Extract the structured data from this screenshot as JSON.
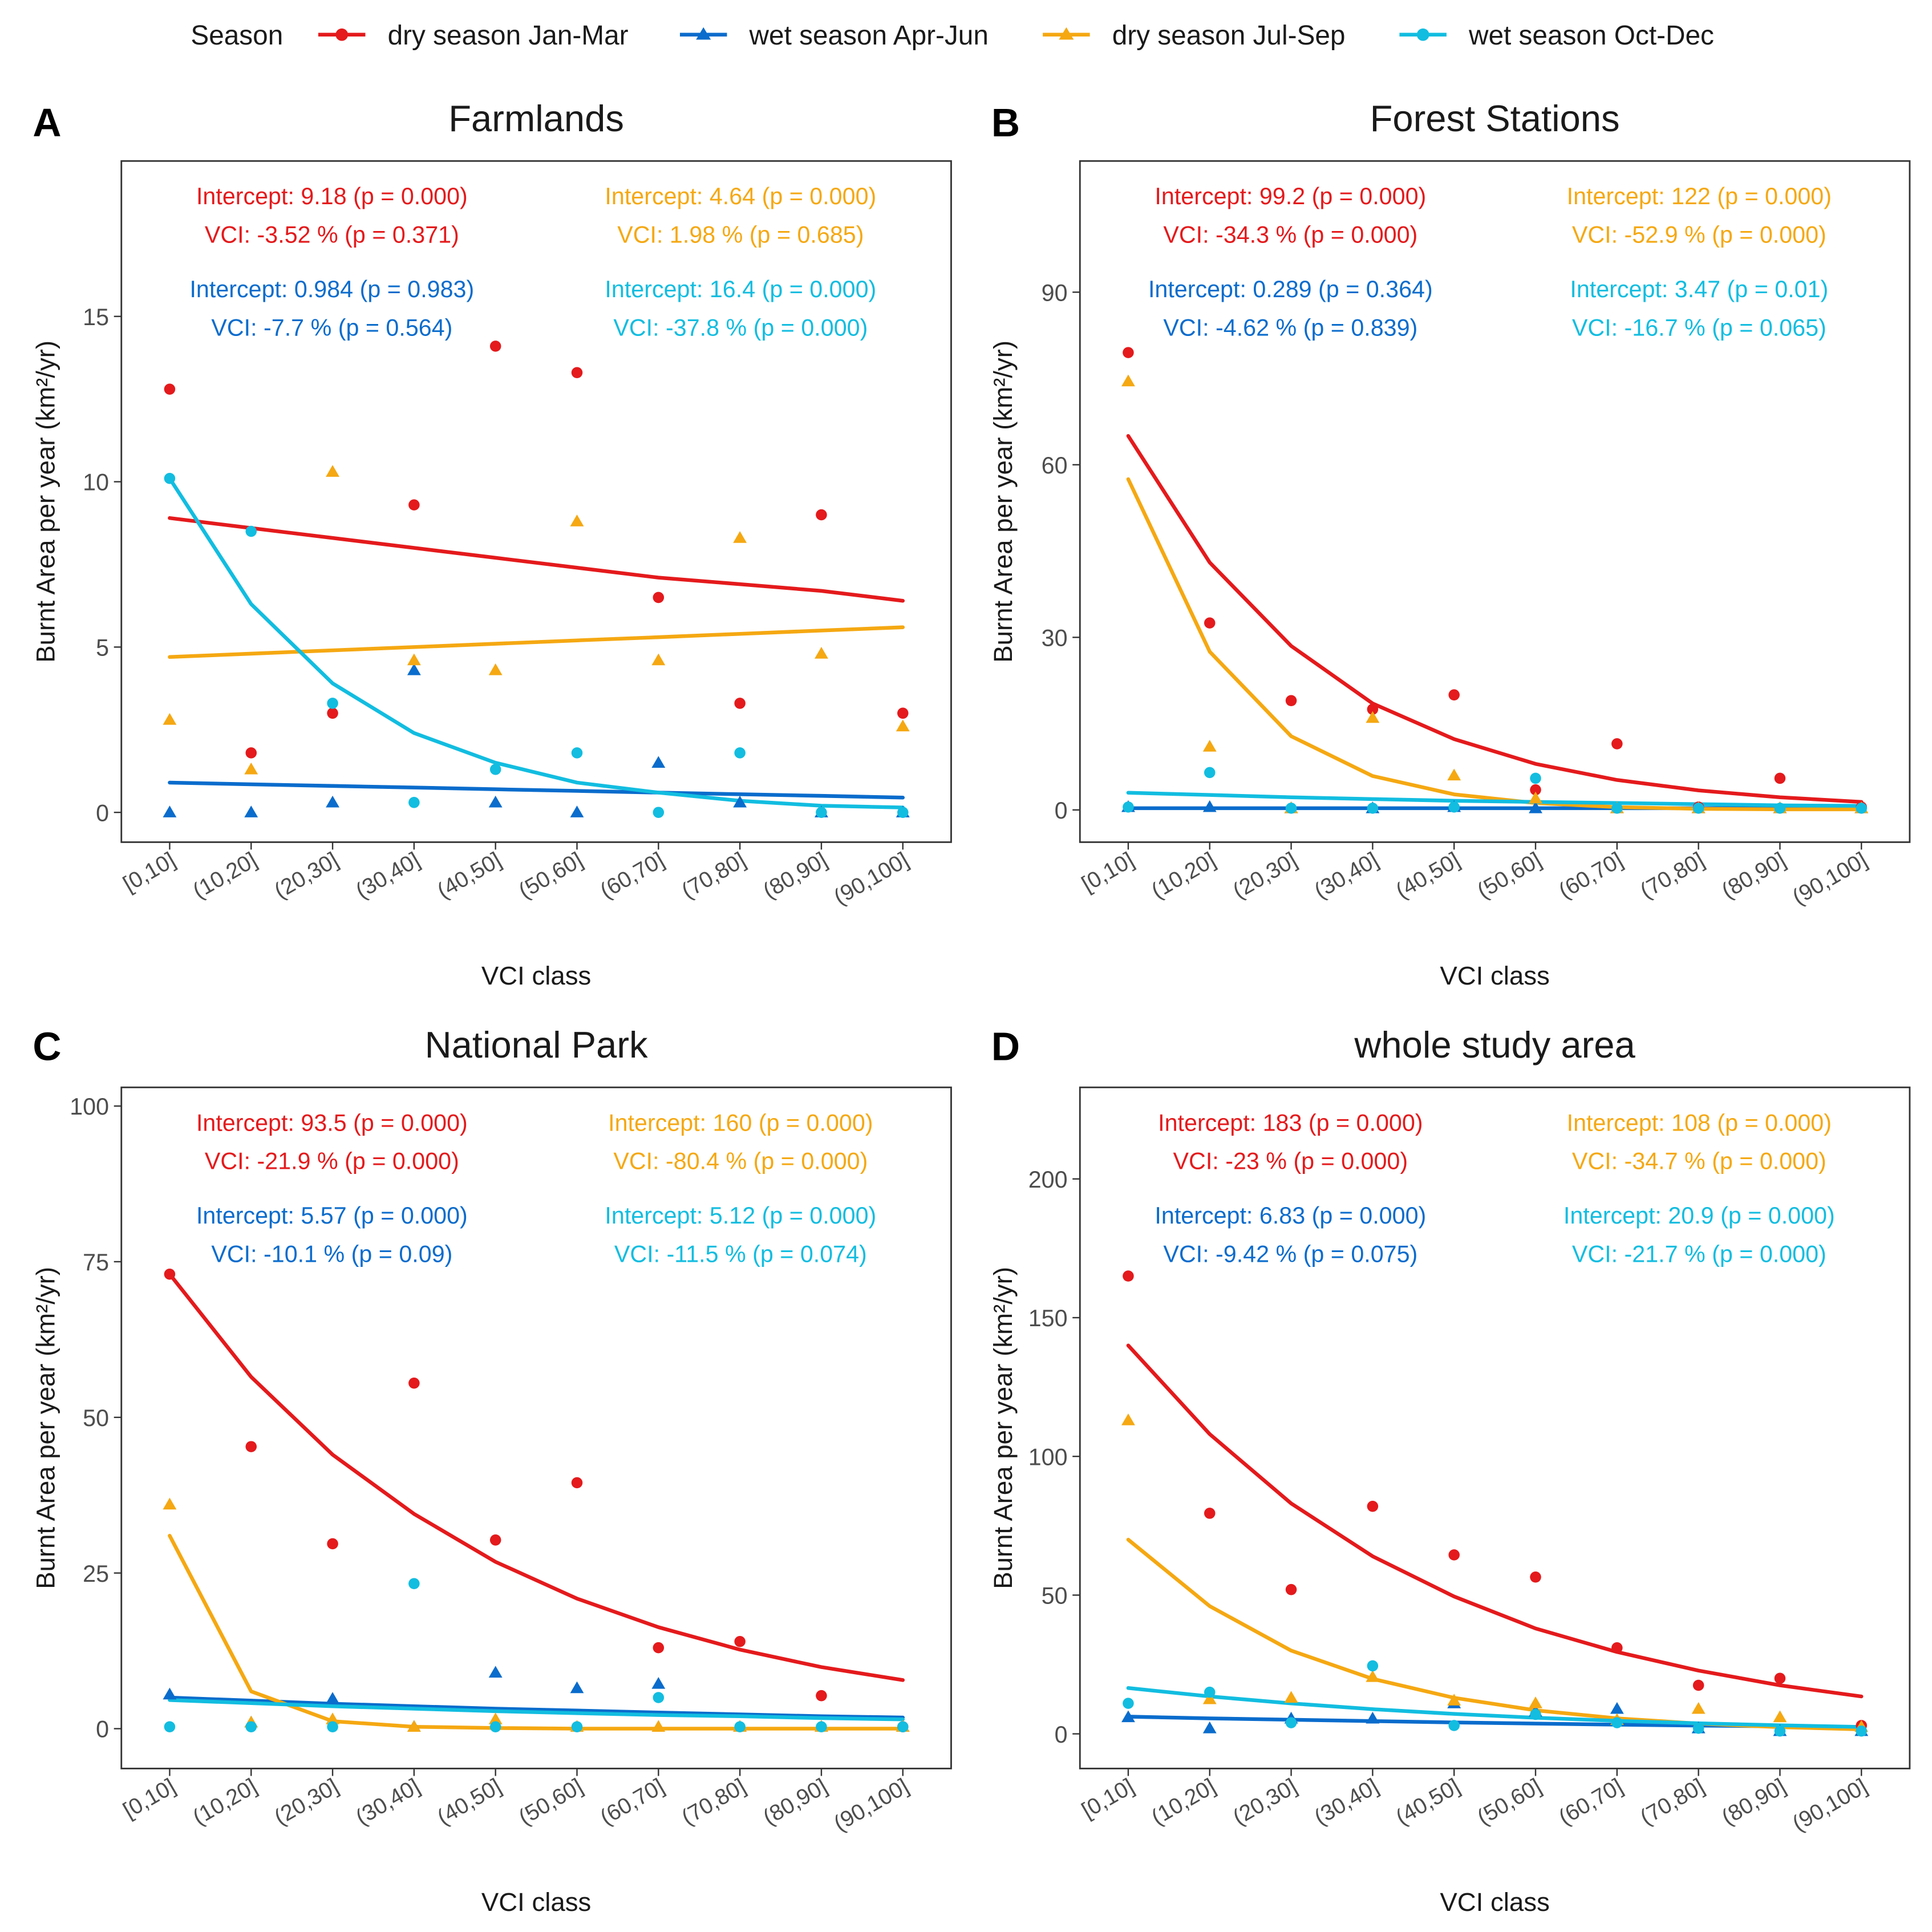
{
  "legend": {
    "title": "Season",
    "entries": [
      {
        "key": "dry1",
        "label": "dry season Jan-Mar",
        "color": "#e41a1c",
        "shape": "circle"
      },
      {
        "key": "wet1",
        "label": "wet season Apr-Jun",
        "color": "#0a6ccc",
        "shape": "triangle"
      },
      {
        "key": "dry2",
        "label": "dry season Jul-Sep",
        "color": "#f5a812",
        "shape": "triangle"
      },
      {
        "key": "wet2",
        "label": "wet season Oct-Dec",
        "color": "#12bde0",
        "shape": "circle"
      }
    ]
  },
  "chart_data": [
    {
      "type": "scatter",
      "tag": "A",
      "title": "Farmlands",
      "xlabel": "VCI class",
      "ylabel": "Burnt Area per year (km²/yr)",
      "categories": [
        "[0,10]",
        "(10,20]",
        "(20,30]",
        "(30,40]",
        "(40,50]",
        "(50,60]",
        "(60,70]",
        "(70,80]",
        "(80,90]",
        "(90,100]"
      ],
      "ylim": [
        -0.9,
        19.7
      ],
      "yticks": [
        0,
        5,
        10,
        15
      ],
      "series": [
        {
          "key": "dry1",
          "name": "dry season Jan-Mar",
          "values": [
            12.8,
            1.8,
            3.0,
            9.3,
            14.1,
            13.3,
            6.5,
            3.3,
            9.0,
            3.0
          ],
          "fit": [
            8.9,
            8.6,
            8.3,
            8.0,
            7.7,
            7.4,
            7.1,
            6.9,
            6.7,
            6.4
          ]
        },
        {
          "key": "wet1",
          "name": "wet season Apr-Jun",
          "values": [
            0.0,
            0.0,
            0.3,
            4.3,
            0.3,
            0.0,
            1.5,
            0.3,
            0.0,
            0.0
          ],
          "fit": [
            0.9,
            0.85,
            0.8,
            0.75,
            0.7,
            0.65,
            0.6,
            0.55,
            0.5,
            0.45
          ]
        },
        {
          "key": "dry2",
          "name": "dry season Jul-Sep",
          "values": [
            2.8,
            1.3,
            10.3,
            4.6,
            4.3,
            8.8,
            4.6,
            8.3,
            4.8,
            2.6
          ],
          "fit": [
            4.7,
            4.8,
            4.9,
            5.0,
            5.1,
            5.2,
            5.3,
            5.4,
            5.5,
            5.6
          ]
        },
        {
          "key": "wet2",
          "name": "wet season Oct-Dec",
          "values": [
            10.1,
            8.5,
            3.3,
            0.3,
            1.3,
            1.8,
            0.0,
            1.8,
            0.0,
            0.0
          ],
          "fit": [
            10.1,
            6.3,
            3.9,
            2.4,
            1.5,
            0.9,
            0.6,
            0.35,
            0.2,
            0.15
          ]
        }
      ],
      "annotations": [
        {
          "key": "dry1",
          "col": "left",
          "lines": [
            "Intercept: 9.18 (p = 0.000)",
            "VCI: -3.52 % (p = 0.371)"
          ]
        },
        {
          "key": "dry2",
          "col": "right",
          "lines": [
            "Intercept: 4.64 (p = 0.000)",
            "VCI: 1.98 % (p = 0.685)"
          ]
        },
        {
          "key": "wet1",
          "col": "left",
          "lines": [
            "Intercept: 0.984 (p = 0.983)",
            "VCI: -7.7 % (p = 0.564)"
          ]
        },
        {
          "key": "wet2",
          "col": "right",
          "lines": [
            "Intercept: 16.4 (p = 0.000)",
            "VCI: -37.8 % (p = 0.000)"
          ]
        }
      ]
    },
    {
      "type": "scatter",
      "tag": "B",
      "title": "Forest Stations",
      "xlabel": "VCI class",
      "ylabel": "Burnt Area per year (km²/yr)",
      "categories": [
        "[0,10]",
        "(10,20]",
        "(20,30]",
        "(30,40]",
        "(40,50]",
        "(50,60]",
        "(60,70]",
        "(70,80]",
        "(80,90]",
        "(90,100]"
      ],
      "ylim": [
        -5.6,
        112.8
      ],
      "yticks": [
        0,
        30,
        60,
        90
      ],
      "series": [
        {
          "key": "dry1",
          "name": "dry season Jan-Mar",
          "values": [
            79.5,
            32.5,
            19.0,
            17.5,
            20.0,
            3.5,
            11.5,
            0.5,
            5.5,
            0.5
          ],
          "fit": [
            65.0,
            43.0,
            28.5,
            18.5,
            12.3,
            8.0,
            5.2,
            3.4,
            2.2,
            1.4
          ]
        },
        {
          "key": "wet1",
          "name": "wet season Apr-Jun",
          "values": [
            0.5,
            0.5,
            0.3,
            0.3,
            0.5,
            0.3,
            0.3,
            0.3,
            0.3,
            0.3
          ],
          "fit": [
            0.3,
            0.3,
            0.3,
            0.3,
            0.3,
            0.3,
            0.3,
            0.3,
            0.3,
            0.3
          ]
        },
        {
          "key": "dry2",
          "name": "dry season Jul-Sep",
          "values": [
            74.5,
            11.0,
            0.3,
            16.0,
            6.0,
            2.0,
            0.3,
            0.3,
            0.3,
            0.3
          ],
          "fit": [
            57.5,
            27.5,
            12.8,
            5.9,
            2.7,
            1.2,
            0.5,
            0.2,
            0.1,
            0.1
          ]
        },
        {
          "key": "wet2",
          "name": "wet season Oct-Dec",
          "values": [
            0.5,
            6.5,
            0.3,
            0.3,
            0.5,
            5.5,
            0.3,
            0.3,
            0.3,
            0.3
          ],
          "fit": [
            3.0,
            2.6,
            2.2,
            1.9,
            1.6,
            1.4,
            1.2,
            1.0,
            0.8,
            0.7
          ]
        }
      ],
      "annotations": [
        {
          "key": "dry1",
          "col": "left",
          "lines": [
            "Intercept: 99.2 (p = 0.000)",
            "VCI: -34.3 % (p = 0.000)"
          ]
        },
        {
          "key": "dry2",
          "col": "right",
          "lines": [
            "Intercept: 122 (p = 0.000)",
            "VCI: -52.9 % (p = 0.000)"
          ]
        },
        {
          "key": "wet1",
          "col": "left",
          "lines": [
            "Intercept: 0.289 (p = 0.364)",
            "VCI: -4.62 % (p = 0.839)"
          ]
        },
        {
          "key": "wet2",
          "col": "right",
          "lines": [
            "Intercept: 3.47 (p = 0.01)",
            "VCI: -16.7 % (p = 0.065)"
          ]
        }
      ]
    },
    {
      "type": "scatter",
      "tag": "C",
      "title": "National Park",
      "xlabel": "VCI class",
      "ylabel": "Burnt Area per year (km²/yr)",
      "categories": [
        "[0,10]",
        "(10,20]",
        "(20,30]",
        "(30,40]",
        "(40,50]",
        "(50,60]",
        "(60,70]",
        "(70,80]",
        "(80,90]",
        "(90,100]"
      ],
      "ylim": [
        -6.4,
        103.0
      ],
      "yticks": [
        0,
        25,
        50,
        75,
        100
      ],
      "series": [
        {
          "key": "dry1",
          "name": "dry season Jan-Mar",
          "values": [
            73.0,
            45.3,
            29.7,
            55.5,
            30.3,
            39.5,
            13.0,
            14.0,
            5.3,
            0.3
          ],
          "fit": [
            73.0,
            56.5,
            44.0,
            34.5,
            26.8,
            20.9,
            16.3,
            12.7,
            9.9,
            7.8
          ]
        },
        {
          "key": "wet1",
          "name": "wet season Apr-Jun",
          "values": [
            5.5,
            1.0,
            4.8,
            0.3,
            9.0,
            6.5,
            7.2,
            0.3,
            0.3,
            0.3
          ],
          "fit": [
            5.0,
            4.5,
            4.0,
            3.6,
            3.2,
            2.9,
            2.6,
            2.3,
            2.0,
            1.8
          ]
        },
        {
          "key": "dry2",
          "name": "dry season Jul-Sep",
          "values": [
            36.0,
            1.0,
            1.5,
            0.3,
            1.5,
            0.3,
            0.3,
            0.3,
            0.3,
            0.3
          ],
          "fit": [
            31.0,
            6.0,
            1.2,
            0.3,
            0.1,
            0.0,
            0.0,
            0.0,
            0.0,
            0.0
          ]
        },
        {
          "key": "wet2",
          "name": "wet season Oct-Dec",
          "values": [
            0.3,
            0.3,
            0.3,
            23.3,
            0.3,
            0.3,
            5.0,
            0.3,
            0.3,
            0.3
          ],
          "fit": [
            4.6,
            4.1,
            3.6,
            3.2,
            2.8,
            2.5,
            2.2,
            2.0,
            1.7,
            1.5
          ]
        }
      ],
      "annotations": [
        {
          "key": "dry1",
          "col": "left",
          "lines": [
            "Intercept: 93.5 (p = 0.000)",
            "VCI: -21.9 % (p = 0.000)"
          ]
        },
        {
          "key": "dry2",
          "col": "right",
          "lines": [
            "Intercept: 160 (p = 0.000)",
            "VCI: -80.4 % (p = 0.000)"
          ]
        },
        {
          "key": "wet1",
          "col": "left",
          "lines": [
            "Intercept: 5.57 (p = 0.000)",
            "VCI: -10.1 % (p = 0.09)"
          ]
        },
        {
          "key": "wet2",
          "col": "right",
          "lines": [
            "Intercept: 5.12 (p = 0.000)",
            "VCI: -11.5 % (p = 0.074)"
          ]
        }
      ]
    },
    {
      "type": "scatter",
      "tag": "D",
      "title": "whole study area",
      "xlabel": "VCI class",
      "ylabel": "Burnt Area per year (km²/yr)",
      "categories": [
        "[0,10]",
        "(10,20]",
        "(20,30]",
        "(30,40]",
        "(40,50]",
        "(50,60]",
        "(60,70]",
        "(70,80]",
        "(80,90]",
        "(90,100]"
      ],
      "ylim": [
        -12.5,
        233.0
      ],
      "yticks": [
        0,
        50,
        100,
        150,
        200
      ],
      "series": [
        {
          "key": "dry1",
          "name": "dry season Jan-Mar",
          "values": [
            165.0,
            79.5,
            52.0,
            82.0,
            64.5,
            56.5,
            31.0,
            17.5,
            20.0,
            3.0
          ],
          "fit": [
            140.0,
            108.0,
            83.0,
            64.0,
            49.5,
            38.0,
            29.5,
            22.8,
            17.5,
            13.5
          ]
        },
        {
          "key": "wet1",
          "name": "wet season Apr-Jun",
          "values": [
            6.0,
            2.0,
            5.5,
            5.5,
            11.0,
            8.0,
            9.0,
            2.0,
            1.0,
            1.0
          ],
          "fit": [
            6.2,
            5.6,
            5.1,
            4.6,
            4.1,
            3.7,
            3.3,
            3.0,
            2.7,
            2.5
          ]
        },
        {
          "key": "dry2",
          "name": "dry season Jul-Sep",
          "values": [
            113.0,
            12.5,
            13.0,
            20.5,
            12.0,
            11.0,
            5.0,
            9.0,
            6.0,
            2.5
          ],
          "fit": [
            70.0,
            46.0,
            30.0,
            19.8,
            13.0,
            8.5,
            5.6,
            3.7,
            2.4,
            1.6
          ]
        },
        {
          "key": "wet2",
          "name": "wet season Oct-Dec",
          "values": [
            11.0,
            15.0,
            4.0,
            24.5,
            3.0,
            7.0,
            4.0,
            2.0,
            1.0,
            1.0
          ],
          "fit": [
            16.5,
            13.5,
            11.0,
            8.9,
            7.2,
            5.8,
            4.7,
            3.8,
            3.1,
            2.5
          ]
        }
      ],
      "annotations": [
        {
          "key": "dry1",
          "col": "left",
          "lines": [
            "Intercept: 183 (p = 0.000)",
            "VCI: -23 % (p = 0.000)"
          ]
        },
        {
          "key": "dry2",
          "col": "right",
          "lines": [
            "Intercept: 108 (p = 0.000)",
            "VCI: -34.7 % (p = 0.000)"
          ]
        },
        {
          "key": "wet1",
          "col": "left",
          "lines": [
            "Intercept: 6.83 (p = 0.000)",
            "VCI: -9.42 % (p = 0.075)"
          ]
        },
        {
          "key": "wet2",
          "col": "right",
          "lines": [
            "Intercept: 20.9 (p = 0.000)",
            "VCI: -21.7 % (p = 0.000)"
          ]
        }
      ]
    }
  ]
}
